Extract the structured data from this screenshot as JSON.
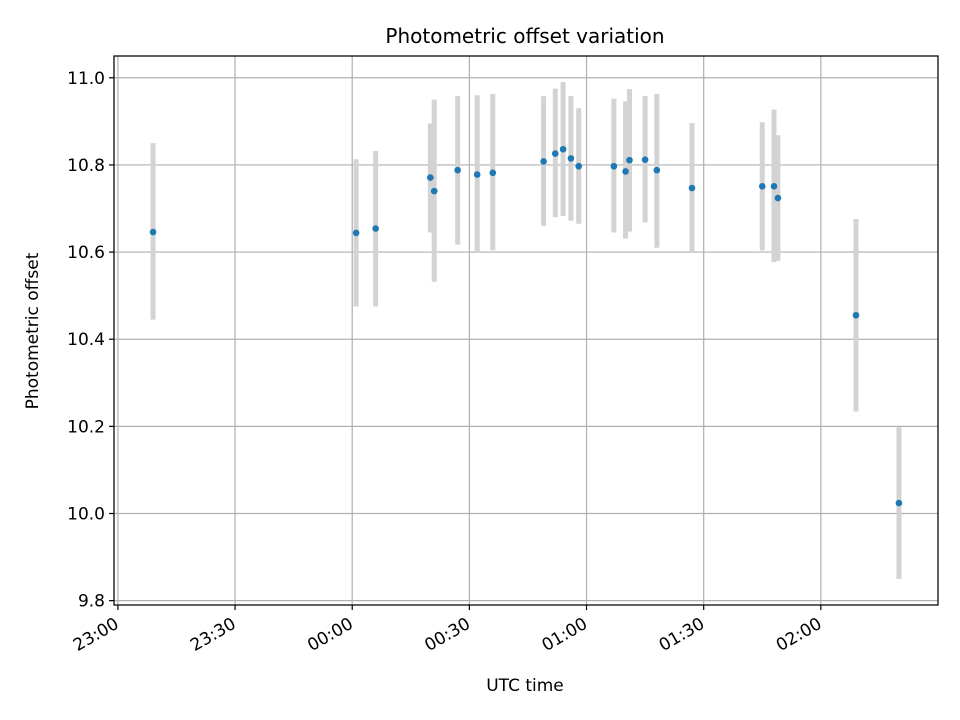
{
  "chart_data": {
    "type": "scatter",
    "title": "Photometric offset variation",
    "xlabel": "UTC time",
    "ylabel": "Photometric offset",
    "x_unit": "UTC clock time; values after 24:00 continue past midnight",
    "xlim": [
      "22:59",
      "02:30"
    ],
    "ylim": [
      9.79,
      11.05
    ],
    "x_ticks": [
      "23:00",
      "23:30",
      "00:00",
      "00:30",
      "01:00",
      "01:30",
      "02:00"
    ],
    "y_ticks": [
      "9.8",
      "10.0",
      "10.2",
      "10.4",
      "10.6",
      "10.8",
      "11.0"
    ],
    "grid": true,
    "colors": {
      "point": "#1f77b4",
      "errorbar": "#d3d3d3",
      "grid": "#b0b0b0"
    },
    "points": [
      {
        "x": "23:09",
        "y": 10.646,
        "y_low": 10.445,
        "y_high": 10.85
      },
      {
        "x": "00:01",
        "y": 10.644,
        "y_low": 10.475,
        "y_high": 10.813
      },
      {
        "x": "00:06",
        "y": 10.654,
        "y_low": 10.475,
        "y_high": 10.832
      },
      {
        "x": "00:20",
        "y": 10.771,
        "y_low": 10.645,
        "y_high": 10.895
      },
      {
        "x": "00:21",
        "y": 10.74,
        "y_low": 10.532,
        "y_high": 10.95
      },
      {
        "x": "00:27",
        "y": 10.788,
        "y_low": 10.617,
        "y_high": 10.958
      },
      {
        "x": "00:32",
        "y": 10.778,
        "y_low": 10.598,
        "y_high": 10.96
      },
      {
        "x": "00:36",
        "y": 10.782,
        "y_low": 10.604,
        "y_high": 10.963
      },
      {
        "x": "00:49",
        "y": 10.808,
        "y_low": 10.66,
        "y_high": 10.958
      },
      {
        "x": "00:52",
        "y": 10.826,
        "y_low": 10.68,
        "y_high": 10.975
      },
      {
        "x": "00:54",
        "y": 10.836,
        "y_low": 10.683,
        "y_high": 10.99
      },
      {
        "x": "00:56",
        "y": 10.815,
        "y_low": 10.672,
        "y_high": 10.958
      },
      {
        "x": "00:58",
        "y": 10.797,
        "y_low": 10.665,
        "y_high": 10.93
      },
      {
        "x": "01:07",
        "y": 10.797,
        "y_low": 10.645,
        "y_high": 10.952
      },
      {
        "x": "01:10",
        "y": 10.785,
        "y_low": 10.631,
        "y_high": 10.946
      },
      {
        "x": "01:11",
        "y": 10.811,
        "y_low": 10.647,
        "y_high": 10.974
      },
      {
        "x": "01:15",
        "y": 10.812,
        "y_low": 10.668,
        "y_high": 10.958
      },
      {
        "x": "01:18",
        "y": 10.788,
        "y_low": 10.61,
        "y_high": 10.963
      },
      {
        "x": "01:27",
        "y": 10.747,
        "y_low": 10.6,
        "y_high": 10.896
      },
      {
        "x": "01:45",
        "y": 10.751,
        "y_low": 10.604,
        "y_high": 10.898
      },
      {
        "x": "01:48",
        "y": 10.751,
        "y_low": 10.577,
        "y_high": 10.927
      },
      {
        "x": "01:49",
        "y": 10.724,
        "y_low": 10.58,
        "y_high": 10.868
      },
      {
        "x": "02:09",
        "y": 10.455,
        "y_low": 10.234,
        "y_high": 10.676
      },
      {
        "x": "02:20",
        "y": 10.024,
        "y_low": 9.85,
        "y_high": 10.198
      }
    ]
  }
}
